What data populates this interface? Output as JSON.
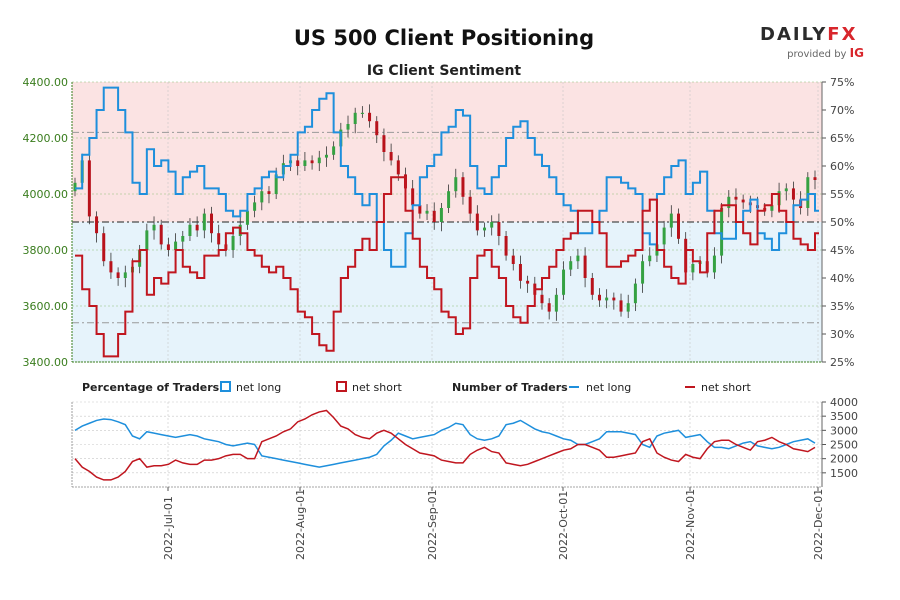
{
  "header": {
    "title": "US 500 Client Positioning",
    "subtitle": "IG Client Sentiment",
    "logo_part1": "DAILY",
    "logo_part2": "FX",
    "provided_by": "provided by",
    "provided_brand": "IG"
  },
  "legend": {
    "pct_title": "Percentage of Traders",
    "pct_long": "net long",
    "pct_short": "net short",
    "num_title": "Number of Traders",
    "num_long": "net long",
    "num_short": "net short"
  },
  "colors": {
    "long": "#1e8fdc",
    "short": "#c0161f",
    "long_bg": "#e6f3fb",
    "short_bg": "#fbe3e3",
    "up_candle": "#35a142",
    "down_candle": "#b8121b",
    "left_axis": "#3a7d1e"
  },
  "chart_data": [
    {
      "type": "candlestick",
      "title": "US 500 Client Positioning",
      "subtitle": "IG Client Sentiment",
      "ylim": [
        3400,
        4400
      ],
      "y_ticks": [
        "3400.00",
        "3600.00",
        "3800.00",
        "4000.00",
        "4200.00",
        "4400.00"
      ],
      "y2lim": [
        25,
        75
      ],
      "y2_ticks": [
        "25%",
        "30%",
        "35%",
        "40%",
        "45%",
        "50%",
        "55%",
        "60%",
        "65%",
        "70%",
        "75%"
      ],
      "reference_lines_pct": [
        32,
        50,
        66
      ],
      "price_close": [
        4040,
        4120,
        3920,
        3860,
        3760,
        3720,
        3700,
        3720,
        3740,
        3800,
        3870,
        3890,
        3820,
        3800,
        3830,
        3850,
        3890,
        3870,
        3930,
        3860,
        3820,
        3800,
        3850,
        3890,
        3940,
        3970,
        4010,
        4000,
        4070,
        4110,
        4120,
        4100,
        4120,
        4110,
        4130,
        4140,
        4170,
        4230,
        4250,
        4290,
        4290,
        4260,
        4210,
        4150,
        4120,
        4070,
        4020,
        3960,
        3930,
        3940,
        3900,
        3950,
        4010,
        4060,
        3990,
        3930,
        3870,
        3880,
        3900,
        3850,
        3780,
        3750,
        3690,
        3680,
        3640,
        3610,
        3580,
        3640,
        3730,
        3760,
        3780,
        3700,
        3640,
        3620,
        3630,
        3620,
        3580,
        3610,
        3680,
        3760,
        3780,
        3820,
        3880,
        3930,
        3840,
        3720,
        3750,
        3760,
        3720,
        3780,
        3950,
        3990,
        3980,
        3970,
        3960,
        3950,
        3940,
        3960,
        4010,
        4020,
        3980,
        3950,
        4060,
        4050
      ],
      "pct_long": [
        56,
        62,
        65,
        70,
        74,
        74,
        70,
        66,
        57,
        55,
        63,
        60,
        61,
        59,
        55,
        58,
        59,
        60,
        56,
        56,
        55,
        52,
        51,
        52,
        55,
        56,
        58,
        59,
        58,
        60,
        62,
        66,
        67,
        70,
        72,
        73,
        66,
        60,
        58,
        55,
        53,
        55,
        50,
        45,
        42,
        42,
        48,
        53,
        58,
        60,
        62,
        66,
        67,
        70,
        69,
        60,
        56,
        55,
        58,
        60,
        65,
        67,
        68,
        65,
        62,
        60,
        58,
        55,
        53,
        52,
        48,
        48,
        50,
        52,
        58,
        58,
        57,
        56,
        55,
        48,
        46,
        55,
        58,
        60,
        61,
        55,
        57,
        59,
        52,
        48,
        47,
        47,
        50,
        52,
        54,
        48,
        47,
        45,
        48,
        50,
        53,
        54,
        55,
        52
      ],
      "pct_short": [
        44,
        38,
        35,
        30,
        26,
        26,
        30,
        34,
        43,
        45,
        37,
        40,
        39,
        41,
        45,
        42,
        41,
        40,
        44,
        44,
        45,
        48,
        49,
        48,
        45,
        44,
        42,
        41,
        42,
        40,
        38,
        34,
        33,
        30,
        28,
        27,
        34,
        40,
        42,
        45,
        47,
        45,
        50,
        55,
        58,
        58,
        52,
        47,
        42,
        40,
        38,
        34,
        33,
        30,
        31,
        40,
        44,
        45,
        42,
        40,
        35,
        33,
        32,
        35,
        38,
        40,
        42,
        45,
        47,
        48,
        52,
        52,
        50,
        48,
        42,
        42,
        43,
        44,
        45,
        52,
        54,
        45,
        42,
        40,
        39,
        45,
        43,
        41,
        48,
        52,
        53,
        53,
        50,
        48,
        46,
        52,
        53,
        55,
        52,
        50,
        47,
        46,
        45,
        48
      ]
    },
    {
      "type": "line",
      "title": "Number of Traders",
      "ylim": [
        1000,
        4000
      ],
      "y_ticks": [
        "1500",
        "2000",
        "2500",
        "3000",
        "3500",
        "4000"
      ],
      "x_tick_labels": [
        "2022-Jul-01",
        "2022-Aug-01",
        "2022-Sep-01",
        "2022-Oct-01",
        "2022-Nov-01",
        "2022-Dec-01"
      ],
      "series": [
        {
          "name": "net long",
          "values": [
            3000,
            3150,
            3250,
            3350,
            3400,
            3380,
            3300,
            3200,
            2800,
            2700,
            2950,
            2900,
            2850,
            2800,
            2750,
            2800,
            2850,
            2800,
            2700,
            2650,
            2600,
            2500,
            2450,
            2500,
            2550,
            2500,
            2100,
            2050,
            2000,
            1950,
            1900,
            1850,
            1800,
            1750,
            1700,
            1750,
            1800,
            1850,
            1900,
            1950,
            2000,
            2050,
            2150,
            2450,
            2650,
            2900,
            2800,
            2700,
            2750,
            2800,
            2850,
            3000,
            3100,
            3250,
            3200,
            2850,
            2700,
            2650,
            2700,
            2800,
            3200,
            3250,
            3350,
            3200,
            3050,
            2950,
            2900,
            2800,
            2700,
            2650,
            2500,
            2500,
            2600,
            2700,
            2950,
            2950,
            2950,
            2900,
            2850,
            2500,
            2400,
            2800,
            2900,
            2950,
            3000,
            2750,
            2800,
            2850,
            2600,
            2400,
            2400,
            2350,
            2450,
            2550,
            2600,
            2450,
            2400,
            2350,
            2400,
            2500,
            2600,
            2650,
            2700,
            2550
          ]
        },
        {
          "name": "net short",
          "values": [
            2000,
            1700,
            1550,
            1350,
            1250,
            1250,
            1350,
            1550,
            1900,
            2000,
            1700,
            1750,
            1750,
            1800,
            1950,
            1850,
            1800,
            1800,
            1950,
            1950,
            2000,
            2100,
            2150,
            2150,
            2000,
            2000,
            2600,
            2700,
            2800,
            2950,
            3050,
            3300,
            3400,
            3550,
            3650,
            3700,
            3450,
            3150,
            3050,
            2850,
            2750,
            2700,
            2900,
            3000,
            2900,
            2700,
            2500,
            2350,
            2200,
            2150,
            2100,
            1950,
            1900,
            1850,
            1850,
            2150,
            2300,
            2400,
            2250,
            2200,
            1850,
            1800,
            1750,
            1800,
            1900,
            2000,
            2100,
            2200,
            2300,
            2350,
            2500,
            2500,
            2400,
            2300,
            2050,
            2050,
            2100,
            2150,
            2200,
            2600,
            2700,
            2200,
            2050,
            1950,
            1900,
            2150,
            2050,
            2000,
            2350,
            2600,
            2650,
            2650,
            2500,
            2400,
            2300,
            2600,
            2650,
            2750,
            2600,
            2500,
            2350,
            2300,
            2250,
            2400
          ]
        }
      ]
    }
  ]
}
